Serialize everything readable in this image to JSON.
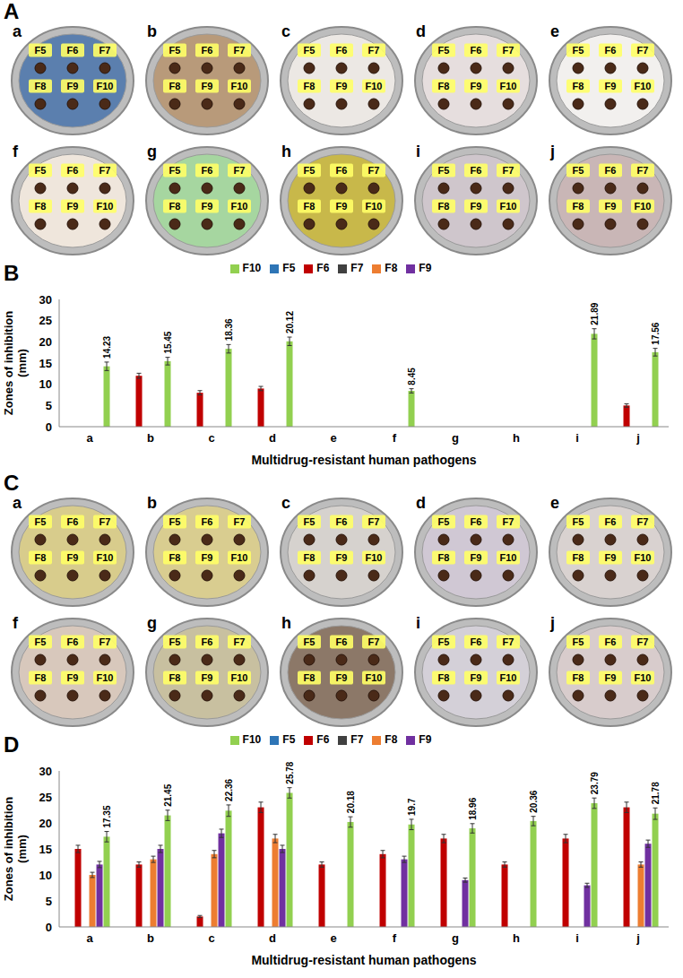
{
  "panels": [
    "A",
    "B",
    "C",
    "D"
  ],
  "plates": [
    {
      "letters": [
        "a",
        "b",
        "c",
        "d",
        "e",
        "f",
        "g",
        "h",
        "i",
        "j"
      ],
      "wells": [
        "F5",
        "F6",
        "F7",
        "F8",
        "F9",
        "F10"
      ],
      "colors": [
        "#5b7fae",
        "#b89a7a",
        "#ece8e4",
        "#e6dede",
        "#f2f0ee",
        "#efe6dc",
        "#a6d6a0",
        "#c8b84a",
        "#cfc6cc",
        "#c9b6b6"
      ]
    },
    {
      "letters": [
        "a",
        "b",
        "c",
        "d",
        "e",
        "f",
        "g",
        "h",
        "i",
        "j"
      ],
      "wells": [
        "F5",
        "F6",
        "F7",
        "F8",
        "F9",
        "F10"
      ],
      "colors": [
        "#d8cc8c",
        "#d9cd90",
        "#d6d2ce",
        "#d0c8d4",
        "#d9d2d0",
        "#d8c8bc",
        "#c8c0a0",
        "#8c7868",
        "#d4d0d8",
        "#d8cccc"
      ]
    }
  ],
  "chart_data": [
    {
      "type": "bar",
      "categories": [
        "a",
        "b",
        "c",
        "d",
        "e",
        "f",
        "g",
        "h",
        "i",
        "j"
      ],
      "x_label": "Multidrug-resistant human pathogens",
      "y_label": "Zones of inhibition (mm)",
      "ylim": [
        0,
        30
      ],
      "yticks": [
        0,
        5,
        10,
        15,
        20,
        25,
        30
      ],
      "grid": false,
      "legend": "top",
      "data_labels": true,
      "series": [
        {
          "name": "F5",
          "color": "#2e75b6",
          "values": [
            0,
            0,
            0,
            0,
            0,
            0,
            0,
            0,
            0,
            0
          ],
          "errors": [
            0,
            0,
            0,
            0,
            0,
            0,
            0,
            0,
            0,
            0
          ]
        },
        {
          "name": "F6",
          "color": "#c00000",
          "values": [
            0,
            12,
            8,
            9,
            0,
            0,
            0,
            0,
            0,
            5
          ],
          "errors": [
            0,
            0.6,
            0.5,
            0.5,
            0,
            0,
            0,
            0,
            0,
            0.4
          ]
        },
        {
          "name": "F7",
          "color": "#404040",
          "values": [
            0,
            0,
            0,
            0,
            0,
            0,
            0,
            0,
            0,
            0
          ],
          "errors": [
            0,
            0,
            0,
            0,
            0,
            0,
            0,
            0,
            0,
            0
          ]
        },
        {
          "name": "F8",
          "color": "#ed7d31",
          "values": [
            0,
            0,
            0,
            0,
            0,
            0,
            0,
            0,
            0,
            0
          ],
          "errors": [
            0,
            0,
            0,
            0,
            0,
            0,
            0,
            0,
            0,
            0
          ]
        },
        {
          "name": "F9",
          "color": "#7030a0",
          "values": [
            0,
            0,
            0,
            0,
            0,
            0,
            0,
            0,
            0,
            0
          ],
          "errors": [
            0,
            0,
            0,
            0,
            0,
            0,
            0,
            0,
            0,
            0
          ]
        },
        {
          "name": "F10",
          "color": "#92d050",
          "values": [
            14.23,
            15.45,
            18.36,
            20.12,
            0,
            8.45,
            0,
            0,
            21.89,
            17.56
          ],
          "errors": [
            1.0,
            0.9,
            1.0,
            1.0,
            0,
            0.5,
            0,
            0,
            1.2,
            0.9
          ],
          "value_labels": [
            "14.23",
            "15.45",
            "18.36",
            "20.12",
            null,
            "8.45",
            null,
            null,
            "21.89",
            "17.56"
          ]
        }
      ]
    },
    {
      "type": "bar",
      "categories": [
        "a",
        "b",
        "c",
        "d",
        "e",
        "f",
        "g",
        "h",
        "i",
        "j"
      ],
      "x_label": "Multidrug-resistant human pathogens",
      "y_label": "Zones of inhibition (mm)",
      "ylim": [
        0,
        30
      ],
      "yticks": [
        0,
        5,
        10,
        15,
        20,
        25,
        30
      ],
      "grid": false,
      "legend": "top",
      "data_labels": true,
      "series": [
        {
          "name": "F5",
          "color": "#2e75b6",
          "values": [
            0,
            0,
            0,
            0,
            0,
            0,
            0,
            0,
            0,
            0
          ],
          "errors": [
            0,
            0,
            0,
            0,
            0,
            0,
            0,
            0,
            0,
            0
          ]
        },
        {
          "name": "F6",
          "color": "#c00000",
          "values": [
            15,
            12,
            2,
            23,
            12,
            14,
            17,
            12,
            17,
            23
          ],
          "errors": [
            0.7,
            0.5,
            0.2,
            1.0,
            0.5,
            0.7,
            0.8,
            0.5,
            0.8,
            1.0
          ]
        },
        {
          "name": "F7",
          "color": "#404040",
          "values": [
            0,
            0,
            0,
            0,
            0,
            0,
            0,
            0,
            0,
            0
          ],
          "errors": [
            0,
            0,
            0,
            0,
            0,
            0,
            0,
            0,
            0,
            0
          ]
        },
        {
          "name": "F8",
          "color": "#ed7d31",
          "values": [
            10,
            13,
            14,
            17,
            0,
            0,
            0,
            0,
            0,
            12
          ],
          "errors": [
            0.5,
            0.6,
            0.7,
            0.8,
            0,
            0,
            0,
            0,
            0,
            0.5
          ]
        },
        {
          "name": "F9",
          "color": "#7030a0",
          "values": [
            12,
            15,
            18,
            15,
            0,
            13,
            9,
            0,
            8,
            16
          ],
          "errors": [
            0.6,
            0.7,
            0.8,
            0.7,
            0,
            0.6,
            0.4,
            0,
            0.4,
            0.7
          ]
        },
        {
          "name": "F10",
          "color": "#92d050",
          "values": [
            17.35,
            21.45,
            22.36,
            25.78,
            20.18,
            19.7,
            18.96,
            20.36,
            23.79,
            21.78
          ],
          "errors": [
            1.0,
            1.0,
            1.1,
            1.0,
            1.0,
            1.0,
            0.9,
            0.9,
            1.0,
            1.1
          ],
          "value_labels": [
            "17.35",
            "21.45",
            "22.36",
            "25.78",
            "20.18",
            "19.7",
            "18.96",
            "20.36",
            "23.79",
            "21.78"
          ]
        }
      ]
    }
  ]
}
